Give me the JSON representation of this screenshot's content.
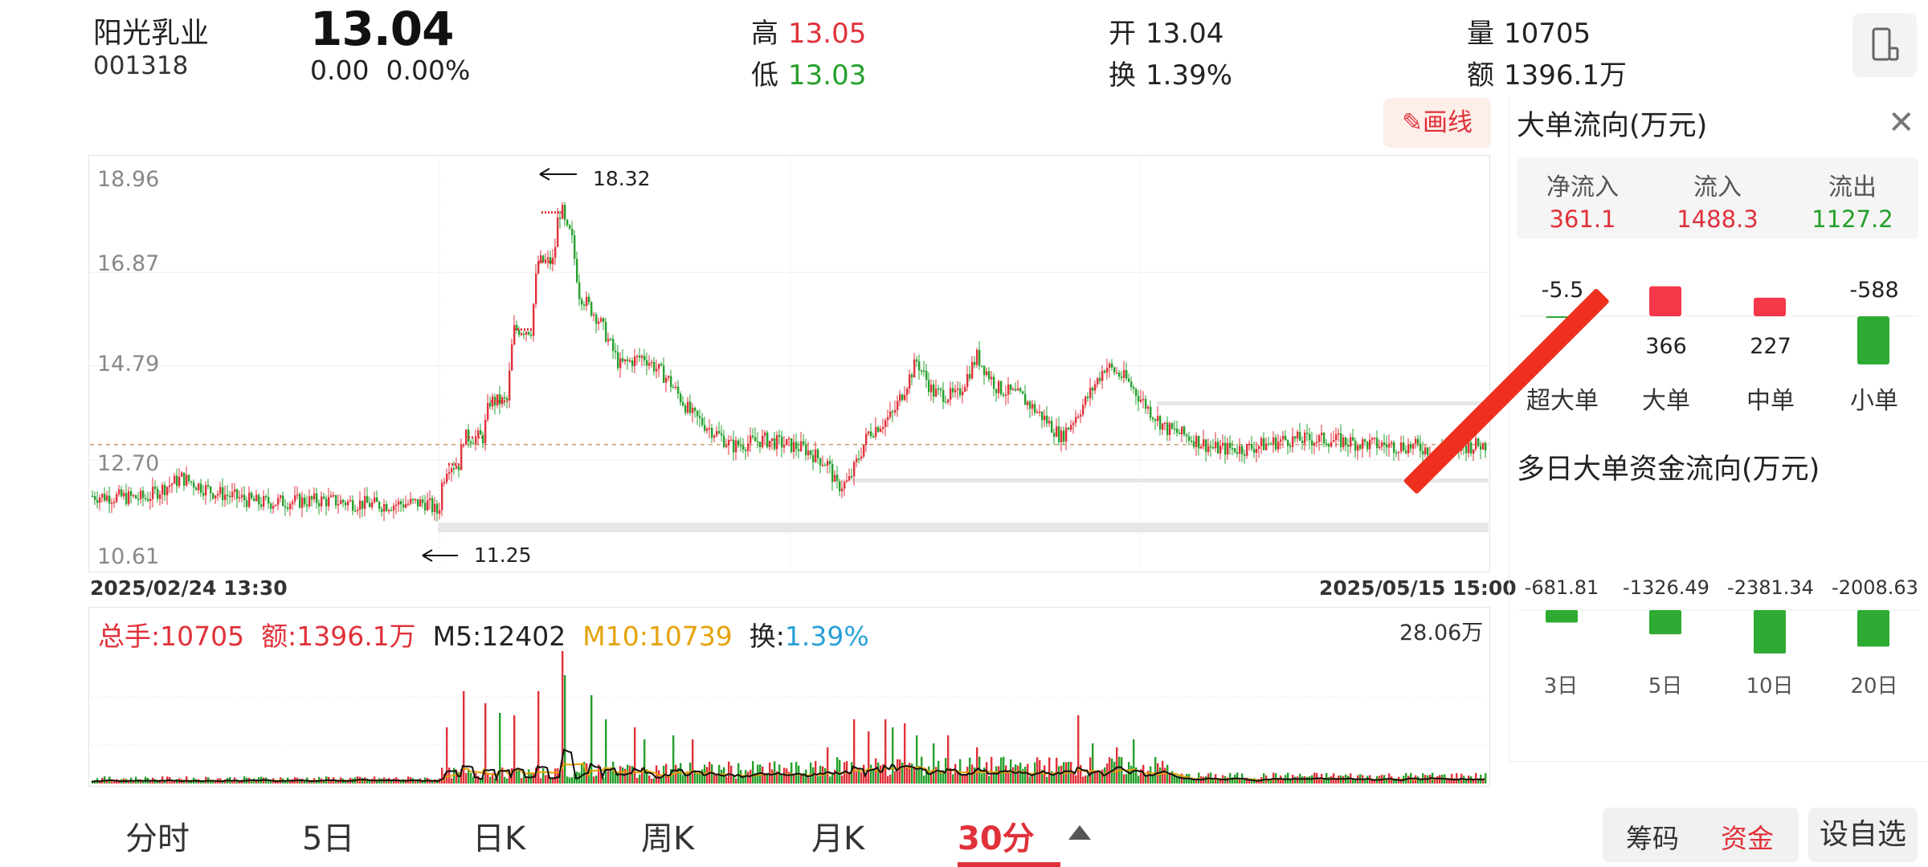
{
  "header": {
    "name": "阳光乳业",
    "code": "001318",
    "price": "13.04",
    "change": "0.00",
    "change_pct": "0.00%",
    "high_label": "高",
    "high": "13.05",
    "low_label": "低",
    "low": "13.03",
    "open_label": "开",
    "open": "13.04",
    "turnover_label": "换",
    "turnover": "1.39%",
    "volume_label": "量",
    "volume": "10705",
    "amount_label": "额",
    "amount": "1396.1万"
  },
  "toolbar": {
    "draw_label": "画线",
    "draw_icon": "pencil-icon",
    "device_icon": "phone-landscape-icon"
  },
  "chart": {
    "y_ticks": [
      "18.96",
      "16.87",
      "14.79",
      "12.70",
      "10.61"
    ],
    "x_start": "2025/02/24 13:30",
    "x_end": "2025/05/15 15:00",
    "max_label": "18.32",
    "min_label": "11.25"
  },
  "volume": {
    "total_label": "总手:",
    "total": "10705",
    "amount_label": "额:",
    "amount": "1396.1万",
    "m5_label": "M5:",
    "m5": "12402",
    "m10_label": "M10:",
    "m10": "10739",
    "turn_label": "换:",
    "turn": "1.39%",
    "max_label": "28.06万"
  },
  "tabs": [
    "分时",
    "5日",
    "日K",
    "周K",
    "月K",
    "30分"
  ],
  "segment": {
    "chip": "筹码",
    "fund": "资金"
  },
  "add_self": "设自选",
  "panel": {
    "title": "大单流向(万元)",
    "close_icon": "close-icon",
    "net_label": "净流入",
    "net": "361.1",
    "in_label": "流入",
    "in": "1488.3",
    "out_label": "流出",
    "out": "1127.2",
    "categories": [
      {
        "label": "超大单",
        "value": "-5.5",
        "sign": "neg",
        "num": -5.5
      },
      {
        "label": "大单",
        "value": "366",
        "sign": "pos",
        "num": 366
      },
      {
        "label": "中单",
        "value": "227",
        "sign": "pos",
        "num": 227
      },
      {
        "label": "小单",
        "value": "-588",
        "sign": "neg",
        "num": -588
      }
    ],
    "multi_title": "多日大单资金流向(万元)",
    "multi": [
      {
        "label": "3日",
        "value": "-681.81",
        "num": -681.81
      },
      {
        "label": "5日",
        "value": "-1326.49",
        "num": -1326.49
      },
      {
        "label": "10日",
        "value": "-2381.34",
        "num": -2381.34
      },
      {
        "label": "20日",
        "value": "-2008.63",
        "num": -2008.63
      }
    ]
  },
  "colors": {
    "up": "#e0313a",
    "down": "#25a02c",
    "accent": "#e0313a",
    "m5": "#111111",
    "m10": "#e5a20a",
    "turn": "#2aa0d8"
  }
}
